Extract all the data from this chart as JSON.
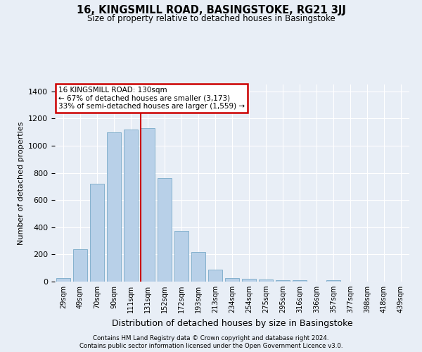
{
  "title": "16, KINGSMILL ROAD, BASINGSTOKE, RG21 3JJ",
  "subtitle": "Size of property relative to detached houses in Basingstoke",
  "xlabel": "Distribution of detached houses by size in Basingstoke",
  "ylabel": "Number of detached properties",
  "categories": [
    "29sqm",
    "49sqm",
    "70sqm",
    "90sqm",
    "111sqm",
    "131sqm",
    "152sqm",
    "172sqm",
    "193sqm",
    "213sqm",
    "234sqm",
    "254sqm",
    "275sqm",
    "295sqm",
    "316sqm",
    "336sqm",
    "357sqm",
    "377sqm",
    "398sqm",
    "418sqm",
    "439sqm"
  ],
  "values": [
    25,
    240,
    720,
    1100,
    1120,
    1130,
    760,
    375,
    220,
    90,
    28,
    20,
    18,
    12,
    8,
    0,
    10,
    0,
    0,
    0,
    0
  ],
  "bar_color": "#b8d0e8",
  "bar_edge_color": "#7aaac8",
  "red_line_index": 5,
  "annotation_title": "16 KINGSMILL ROAD: 130sqm",
  "annotation_line1": "← 67% of detached houses are smaller (3,173)",
  "annotation_line2": "33% of semi-detached houses are larger (1,559) →",
  "annotation_box_color": "#ffffff",
  "annotation_box_edge": "#cc0000",
  "ylim": [
    0,
    1450
  ],
  "footer1": "Contains HM Land Registry data © Crown copyright and database right 2024.",
  "footer2": "Contains public sector information licensed under the Open Government Licence v3.0.",
  "bg_color": "#e8eef6",
  "plot_bg_color": "#e8eef6"
}
